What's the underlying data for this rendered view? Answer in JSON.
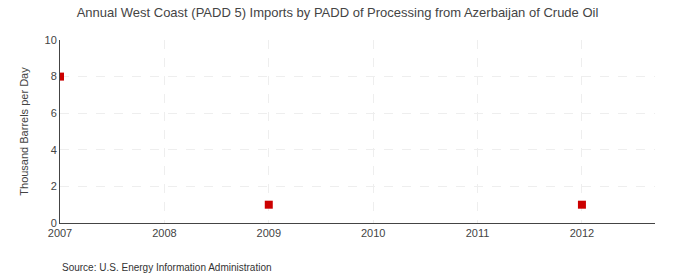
{
  "chart_data": {
    "type": "scatter",
    "title": "Annual West Coast (PADD 5) Imports by PADD of Processing from Azerbaijan of Crude Oil",
    "ylabel": "Thousand Barrels per Day",
    "annotations": [
      "Source: U.S. Energy Information Administration"
    ],
    "x": [
      2007,
      2009,
      2012
    ],
    "values": [
      8,
      1,
      1
    ],
    "color": "#cc0000",
    "marker": "square",
    "xlim": [
      2007,
      2012.7
    ],
    "xticks": [
      2007,
      2008,
      2009,
      2010,
      2011,
      2012
    ],
    "ylim": [
      0,
      10
    ],
    "yticks": [
      0,
      2,
      4,
      6,
      8,
      10
    ],
    "grid": true
  }
}
